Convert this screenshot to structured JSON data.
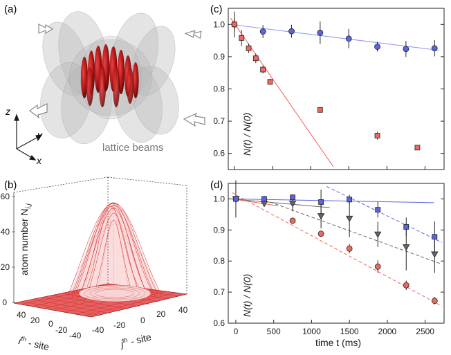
{
  "panels": {
    "a": {
      "label": "(a)",
      "axis_z": "z",
      "axis_y": "y",
      "axis_x": "x",
      "caption": "lattice beams"
    },
    "b": {
      "label": "(b)",
      "zlabel": "atom number N",
      "zlabel_sub": "i,j",
      "z_ticks": [
        "0",
        "20",
        "40",
        "60"
      ],
      "i_ticks": [
        "40",
        "20",
        "0",
        "-20",
        "-40"
      ],
      "j_ticks": [
        "-40",
        "-20",
        "0",
        "20",
        "40"
      ],
      "i_label": "i",
      "i_sup": "th",
      "i_rest": " - site",
      "j_label": "j",
      "j_sup": "th",
      "j_rest": " - site"
    },
    "c": {
      "label": "(c)",
      "ylabel": "N(t) / N(0)"
    },
    "d": {
      "label": "(d)",
      "ylabel": "N(t) / N(0)",
      "xlabel": "time t (ms)"
    }
  },
  "colors": {
    "blue": "#5a64e0",
    "red": "#e86a60",
    "gray": "#666666",
    "lightred": "#ff5555",
    "lightblue": "#8f96f0"
  },
  "chart_data": [
    {
      "id": "c",
      "type": "scatter",
      "xlim": [
        -80,
        2750
      ],
      "ylim": [
        0.55,
        1.05
      ],
      "yticks": [
        "0.6",
        "0.7",
        "0.8",
        "0.9",
        "1.0"
      ],
      "series": [
        {
          "marker": "circle",
          "color": "blue",
          "x": [
            0,
            375,
            750,
            1125,
            1500,
            1875,
            2250,
            2625
          ],
          "y": [
            1.0,
            0.978,
            0.979,
            0.974,
            0.956,
            0.931,
            0.924,
            0.926
          ],
          "err": [
            0.02,
            0.02,
            0.02,
            0.035,
            0.03,
            0.015,
            0.025,
            0.025
          ]
        },
        {
          "marker": "square",
          "color": "red",
          "x": [
            0,
            94,
            188,
            281,
            375,
            469,
            1125,
            1875,
            2400
          ],
          "y": [
            1.0,
            0.958,
            0.926,
            0.895,
            0.86,
            0.822,
            0.735,
            0.655,
            0.618
          ],
          "err": [
            0.04,
            0.025,
            0.015,
            0.015,
            0.012,
            0.01,
            0.008,
            0.012,
            0.004
          ]
        }
      ],
      "fits": [
        {
          "color": "lightblue",
          "x": [
            -50,
            2680
          ],
          "y": [
            1.0,
            0.92
          ]
        },
        {
          "color": "lightred",
          "x": [
            -50,
            1300
          ],
          "y": [
            1.02,
            0.558
          ]
        }
      ]
    },
    {
      "id": "d",
      "type": "scatter",
      "xlim": [
        -100,
        2750
      ],
      "ylim": [
        0.6,
        1.05
      ],
      "xticks": [
        0,
        500,
        1000,
        1500,
        2000,
        2500
      ],
      "yticks": [
        "0.6",
        "0.7",
        "0.8",
        "0.9",
        "1.0"
      ],
      "series": [
        {
          "marker": "circle",
          "color": "red",
          "x": [
            0,
            750,
            1125,
            1500,
            1875,
            2250,
            2625
          ],
          "y": [
            1.0,
            0.93,
            0.888,
            0.84,
            0.782,
            0.722,
            0.672
          ],
          "err": [
            0.01,
            0.01,
            0.01,
            0.015,
            0.02,
            0.015,
            0.012
          ]
        },
        {
          "marker": "triangle",
          "color": "gray",
          "x": [
            0,
            375,
            750,
            1125,
            1500,
            1875,
            2250,
            2625
          ],
          "y": [
            1.0,
            0.985,
            0.985,
            0.945,
            0.937,
            0.886,
            0.845,
            0.822
          ],
          "err": [
            0.06,
            0.01,
            0.025,
            0.04,
            0.06,
            0.04,
            0.075,
            0.06
          ]
        },
        {
          "marker": "square",
          "color": "blue",
          "x": [
            0,
            375,
            750,
            1125,
            1500,
            1875,
            2250,
            2625
          ],
          "y": [
            1.0,
            1.0,
            1.005,
            0.99,
            0.998,
            0.965,
            0.91,
            0.878
          ],
          "err": [
            0.01,
            0.01,
            0.01,
            0.04,
            0.015,
            0.025,
            0.03,
            0.05
          ]
        }
      ],
      "fits": [
        {
          "color": "blue",
          "dash": false,
          "x": [
            -50,
            2620
          ],
          "y": [
            1.0,
            0.988
          ]
        },
        {
          "color": "gray",
          "dash": false,
          "x": [
            -50,
            1240
          ],
          "y": [
            1.0,
            0.972
          ]
        },
        {
          "color": "red",
          "dash": false,
          "x": [
            -50,
            550
          ],
          "y": [
            1.0,
            0.978
          ]
        },
        {
          "color": "red",
          "dash": true,
          "x": [
            -50,
            2720
          ],
          "y": [
            1.02,
            0.655
          ]
        },
        {
          "color": "gray",
          "dash": true,
          "x": [
            450,
            2720
          ],
          "y": [
            0.99,
            0.79
          ]
        },
        {
          "color": "blue",
          "dash": true,
          "x": [
            1200,
            2720
          ],
          "y": [
            1.04,
            0.86
          ]
        }
      ]
    }
  ]
}
